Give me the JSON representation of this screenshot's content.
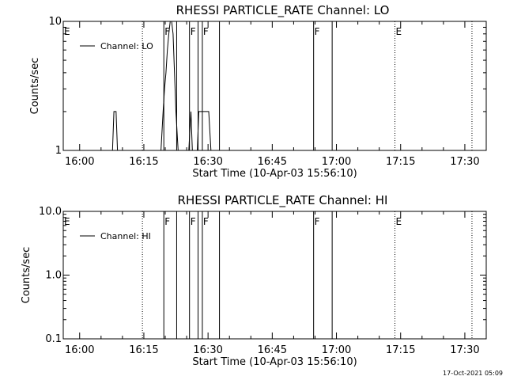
{
  "timestamp": "17-Oct-2021 05:09",
  "chart_data": [
    {
      "type": "line",
      "title": "RHESSI PARTICLE_RATE Channel: LO",
      "xlabel": "Start Time (10-Apr-03 15:56:10)",
      "ylabel": "Counts/sec",
      "yscale": "log",
      "xlim": [
        "15:56:10",
        "17:35:00"
      ],
      "ylim": [
        1,
        10
      ],
      "xticks": [
        "16:00",
        "16:15",
        "16:30",
        "16:45",
        "17:00",
        "17:15",
        "17:30"
      ],
      "yticks": [
        {
          "value": 10,
          "label": "10"
        },
        {
          "value": 1,
          "label": "1"
        }
      ],
      "legend": {
        "position": "top-left",
        "entries": [
          "Channel: LO"
        ]
      },
      "flags": [
        {
          "time": "15:56:10",
          "label": "E",
          "style": "none"
        },
        {
          "time": "16:14:40",
          "label": "",
          "style": "dotted"
        },
        {
          "time": "16:19:40",
          "label": "F",
          "style": "solid"
        },
        {
          "time": "16:22:40",
          "label": "",
          "style": "solid"
        },
        {
          "time": "16:25:40",
          "label": "F",
          "style": "solid"
        },
        {
          "time": "16:27:40",
          "label": "",
          "style": "solid"
        },
        {
          "time": "16:28:40",
          "label": "F",
          "style": "solid"
        },
        {
          "time": "16:32:40",
          "label": "",
          "style": "solid"
        },
        {
          "time": "16:54:40",
          "label": "F",
          "style": "solid"
        },
        {
          "time": "16:59:00",
          "label": "",
          "style": "solid"
        },
        {
          "time": "17:13:40",
          "label": "E",
          "style": "dotted"
        },
        {
          "time": "17:31:40",
          "label": "",
          "style": "dotted"
        }
      ],
      "series": [
        {
          "name": "Channel: LO",
          "points": [
            [
              "16:07:40",
              1
            ],
            [
              "16:08:00",
              2
            ],
            [
              "16:08:30",
              2
            ],
            [
              "16:08:50",
              1
            ],
            [
              "16:19:00",
              1
            ],
            [
              "16:19:30",
              2
            ],
            [
              "16:19:50",
              3
            ],
            [
              "16:20:10",
              4
            ],
            [
              "16:20:30",
              6
            ],
            [
              "16:20:50",
              8
            ],
            [
              "16:21:10",
              10
            ],
            [
              "16:21:30",
              10
            ],
            [
              "16:21:50",
              8
            ],
            [
              "16:22:10",
              4
            ],
            [
              "16:22:30",
              2
            ],
            [
              "16:23:00",
              1
            ],
            [
              "16:25:30",
              1
            ],
            [
              "16:26:00",
              2
            ],
            [
              "16:26:20",
              1
            ],
            [
              "16:27:30",
              1
            ],
            [
              "16:27:50",
              2
            ],
            [
              "16:30:10",
              2
            ],
            [
              "16:30:40",
              1
            ]
          ]
        }
      ]
    },
    {
      "type": "line",
      "title": "RHESSI PARTICLE_RATE Channel: HI",
      "xlabel": "Start Time (10-Apr-03 15:56:10)",
      "ylabel": "Counts/sec",
      "yscale": "log",
      "xlim": [
        "15:56:10",
        "17:35:00"
      ],
      "ylim": [
        0.1,
        10
      ],
      "xticks": [
        "16:00",
        "16:15",
        "16:30",
        "16:45",
        "17:00",
        "17:15",
        "17:30"
      ],
      "yticks": [
        {
          "value": 10,
          "label": "10.0"
        },
        {
          "value": 1,
          "label": "1.0"
        },
        {
          "value": 0.1,
          "label": "0.1"
        }
      ],
      "legend": {
        "position": "top-left",
        "entries": [
          "Channel: HI"
        ]
      },
      "flags": [
        {
          "time": "15:56:10",
          "label": "E",
          "style": "none"
        },
        {
          "time": "16:14:40",
          "label": "",
          "style": "dotted"
        },
        {
          "time": "16:19:40",
          "label": "F",
          "style": "solid"
        },
        {
          "time": "16:22:40",
          "label": "",
          "style": "solid"
        },
        {
          "time": "16:25:40",
          "label": "F",
          "style": "solid"
        },
        {
          "time": "16:27:40",
          "label": "",
          "style": "solid"
        },
        {
          "time": "16:28:40",
          "label": "F",
          "style": "solid"
        },
        {
          "time": "16:32:40",
          "label": "",
          "style": "solid"
        },
        {
          "time": "16:54:40",
          "label": "F",
          "style": "solid"
        },
        {
          "time": "16:59:00",
          "label": "",
          "style": "solid"
        },
        {
          "time": "17:13:40",
          "label": "E",
          "style": "dotted"
        },
        {
          "time": "17:31:40",
          "label": "",
          "style": "dotted"
        }
      ],
      "series": [
        {
          "name": "Channel: HI",
          "points": []
        }
      ]
    }
  ]
}
